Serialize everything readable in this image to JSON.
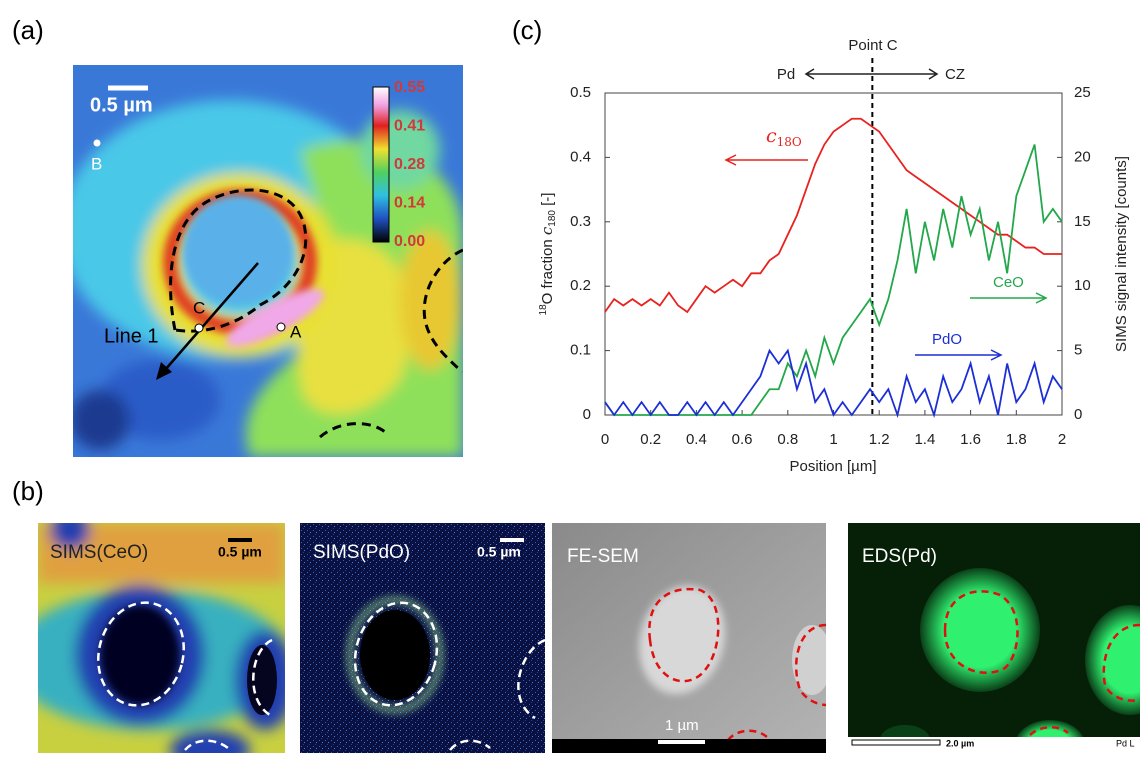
{
  "panel_labels": [
    "(a)",
    "(b)",
    "(c)"
  ],
  "panel_a": {
    "scale_bar": "0.5 µm",
    "point_b": "B",
    "point_c": "C",
    "point_a": "A",
    "line": "Line 1",
    "colorbar": [
      "0.55",
      "0.41",
      "0.28",
      "0.14",
      "0.00"
    ]
  },
  "panel_b": [
    {
      "label": "SIMS(CeO)",
      "scale": "0.5 µm"
    },
    {
      "label": "SIMS(PdO)",
      "scale": "0.5 µm"
    },
    {
      "label": "FE-SEM",
      "scale": "1 µm"
    },
    {
      "label": "EDS(Pd)",
      "scale": "2.0 µm",
      "footer": "Pd L"
    }
  ],
  "chart_data": {
    "type": "line",
    "xlabel": "Position [µm]",
    "ylabel": {
      "sup": "18",
      "text": "O fraction ",
      "var": "c",
      "sub": "180",
      "end": " [-]"
    },
    "y2label": "SIMS signal intensity [counts]",
    "point_c": {
      "label": "Point C",
      "x": 1.17
    },
    "left_label": "Pd",
    "right_label": "CZ",
    "xlim": [
      0,
      2
    ],
    "xticks": [
      0,
      0.2,
      0.4,
      0.6,
      0.8,
      1,
      1.2,
      1.4,
      1.6,
      1.8,
      2
    ],
    "ylim": [
      0,
      0.5
    ],
    "yticks": [
      0,
      0.1,
      0.2,
      0.3,
      0.4,
      0.5
    ],
    "y2lim": [
      0,
      25
    ],
    "y2ticks": [
      0,
      5,
      10,
      15,
      20,
      25
    ],
    "x": [
      0,
      0.04,
      0.08,
      0.12,
      0.16,
      0.2,
      0.24,
      0.28,
      0.32,
      0.36,
      0.4,
      0.44,
      0.48,
      0.52,
      0.56,
      0.6,
      0.64,
      0.68,
      0.72,
      0.76,
      0.8,
      0.84,
      0.88,
      0.92,
      0.96,
      1,
      1.04,
      1.08,
      1.12,
      1.16,
      1.2,
      1.24,
      1.28,
      1.32,
      1.36,
      1.4,
      1.44,
      1.48,
      1.52,
      1.56,
      1.6,
      1.64,
      1.68,
      1.72,
      1.76,
      1.8,
      1.84,
      1.88,
      1.92,
      1.96,
      2
    ],
    "series": [
      {
        "name": "c",
        "name_sub": "18O",
        "color": "#e8221f",
        "axis": "y",
        "values": [
          0.16,
          0.18,
          0.17,
          0.18,
          0.17,
          0.18,
          0.17,
          0.19,
          0.17,
          0.16,
          0.18,
          0.2,
          0.19,
          0.2,
          0.21,
          0.2,
          0.22,
          0.22,
          0.24,
          0.25,
          0.28,
          0.31,
          0.35,
          0.39,
          0.42,
          0.44,
          0.45,
          0.46,
          0.46,
          0.45,
          0.44,
          0.42,
          0.4,
          0.38,
          0.37,
          0.36,
          0.35,
          0.34,
          0.33,
          0.32,
          0.31,
          0.3,
          0.29,
          0.28,
          0.28,
          0.27,
          0.26,
          0.26,
          0.25,
          0.25,
          0.25
        ]
      },
      {
        "name": "CeO",
        "color": "#22a84a",
        "axis": "y2",
        "values": [
          1,
          0,
          0,
          0,
          0,
          0,
          0,
          0,
          0,
          0,
          0,
          0,
          0,
          0,
          0,
          0,
          0,
          1,
          2,
          2,
          4,
          3,
          5,
          3,
          6,
          4,
          6,
          7,
          8,
          9,
          7,
          9,
          12,
          16,
          11,
          15,
          12,
          16,
          13,
          17,
          14,
          16,
          12,
          15,
          11,
          17,
          19,
          21,
          15,
          16,
          15
        ]
      },
      {
        "name": "PdO",
        "color": "#1c2fd6",
        "axis": "y2",
        "values": [
          1,
          0,
          1,
          0,
          1,
          0,
          1,
          0,
          0,
          1,
          0,
          1,
          0,
          1,
          0,
          1,
          2,
          3,
          5,
          4,
          5,
          2,
          4,
          1,
          2,
          0,
          1,
          0,
          1,
          2,
          1,
          2,
          0,
          3,
          1,
          2,
          0,
          3,
          1,
          2,
          4,
          1,
          3,
          0,
          4,
          1,
          2,
          4,
          1,
          3,
          2
        ]
      }
    ]
  }
}
